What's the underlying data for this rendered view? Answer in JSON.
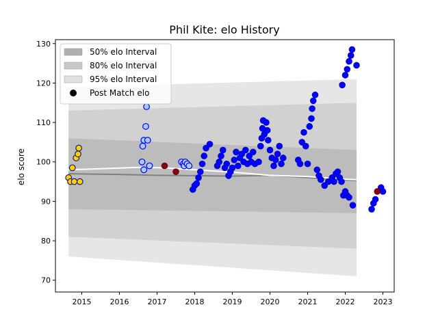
{
  "chart_data": {
    "type": "scatter",
    "title": "Phil Kite: elo History",
    "xlabel": "",
    "ylabel": "elo score",
    "xlim": [
      2014.3,
      2023.3
    ],
    "ylim": [
      67,
      131
    ],
    "x_ticks": [
      2015,
      2016,
      2017,
      2018,
      2019,
      2020,
      2021,
      2022,
      2023
    ],
    "y_ticks": [
      70,
      80,
      90,
      100,
      110,
      120,
      130
    ],
    "legend": {
      "position": "top-left",
      "entries": [
        {
          "label": "50% elo Interval",
          "color": "#b0b0b0"
        },
        {
          "label": "80% elo Interval",
          "color": "#c8c8c8"
        },
        {
          "label": "95% elo Interval",
          "color": "#e0e0e0"
        },
        {
          "label": "Post Match elo",
          "color": "#000000"
        }
      ]
    },
    "bands": {
      "x_range": [
        2014.65,
        2022.3
      ],
      "p95": {
        "upper_start": 119,
        "upper_end": 121,
        "lower_start": 76,
        "lower_end": 71
      },
      "p80": {
        "upper_start": 113,
        "upper_end": 115,
        "lower_start": 81,
        "lower_end": 78
      },
      "p50": {
        "upper_start": 106,
        "upper_end": 103,
        "lower_start": 88,
        "lower_end": 87
      }
    },
    "mean_lines": {
      "white": [
        [
          2014.65,
          98.0
        ],
        [
          2016.5,
          98.6
        ],
        [
          2017.2,
          98.5
        ],
        [
          2018.0,
          98.0
        ],
        [
          2019.0,
          97.4
        ],
        [
          2020.0,
          96.6
        ],
        [
          2021.0,
          96.3
        ],
        [
          2022.0,
          95.6
        ],
        [
          2022.3,
          95.5
        ]
      ],
      "gray": [
        [
          2014.65,
          97.0
        ],
        [
          2016.0,
          96.8
        ],
        [
          2017.0,
          96.6
        ],
        [
          2018.0,
          96.5
        ],
        [
          2019.0,
          96.4
        ],
        [
          2020.0,
          96.6
        ],
        [
          2021.0,
          96.0
        ],
        [
          2022.0,
          95.4
        ],
        [
          2022.3,
          95.3
        ]
      ]
    },
    "series": [
      {
        "style": "filled-blue",
        "points": [
          [
            2017.95,
            93
          ],
          [
            2018.0,
            94
          ],
          [
            2018.05,
            94.5
          ],
          [
            2018.1,
            96
          ],
          [
            2018.15,
            97.5
          ],
          [
            2018.2,
            99.5
          ],
          [
            2018.25,
            101.5
          ],
          [
            2018.3,
            103.5
          ],
          [
            2018.4,
            104.5
          ],
          [
            2018.6,
            99
          ],
          [
            2018.65,
            100
          ],
          [
            2018.7,
            101.5
          ],
          [
            2018.75,
            103
          ],
          [
            2018.8,
            98.5
          ],
          [
            2018.85,
            99.5
          ],
          [
            2018.9,
            96.5
          ],
          [
            2018.95,
            97.5
          ],
          [
            2019.0,
            98.5
          ],
          [
            2019.05,
            100.5
          ],
          [
            2019.1,
            102.5
          ],
          [
            2019.15,
            99
          ],
          [
            2019.2,
            101
          ],
          [
            2019.25,
            102
          ],
          [
            2019.3,
            100
          ],
          [
            2019.35,
            103
          ],
          [
            2019.4,
            99.5
          ],
          [
            2019.45,
            101.5
          ],
          [
            2019.5,
            100
          ],
          [
            2019.55,
            102.5
          ],
          [
            2019.6,
            99.5
          ],
          [
            2019.7,
            100
          ],
          [
            2019.75,
            104
          ],
          [
            2019.78,
            106
          ],
          [
            2019.8,
            108.5
          ],
          [
            2019.82,
            110.5
          ],
          [
            2019.85,
            107
          ],
          [
            2019.9,
            110
          ],
          [
            2019.93,
            108
          ],
          [
            2019.95,
            105.5
          ],
          [
            2020.0,
            103
          ],
          [
            2020.05,
            101
          ],
          [
            2020.1,
            99
          ],
          [
            2020.15,
            100.5
          ],
          [
            2020.2,
            102
          ],
          [
            2020.25,
            104
          ],
          [
            2020.3,
            99.5
          ],
          [
            2020.35,
            101
          ],
          [
            2020.75,
            100.5
          ],
          [
            2020.8,
            99.5
          ],
          [
            2020.85,
            105
          ],
          [
            2020.9,
            107.5
          ],
          [
            2020.95,
            104
          ],
          [
            2021.0,
            99.5
          ],
          [
            2021.05,
            109
          ],
          [
            2021.1,
            111
          ],
          [
            2021.12,
            113.5
          ],
          [
            2021.15,
            115.5
          ],
          [
            2021.2,
            117
          ],
          [
            2021.25,
            98
          ],
          [
            2021.3,
            96.5
          ],
          [
            2021.35,
            95.5
          ],
          [
            2021.45,
            94
          ],
          [
            2021.55,
            95
          ],
          [
            2021.65,
            96
          ],
          [
            2021.7,
            95
          ],
          [
            2021.75,
            97
          ],
          [
            2021.8,
            97.5
          ],
          [
            2021.85,
            96
          ],
          [
            2021.9,
            95
          ],
          [
            2021.92,
            119.5
          ],
          [
            2022.0,
            122
          ],
          [
            2022.05,
            123.5
          ],
          [
            2022.1,
            125.5
          ],
          [
            2022.15,
            127
          ],
          [
            2022.18,
            128.5
          ],
          [
            2022.3,
            124.5
          ],
          [
            2021.95,
            91.5
          ],
          [
            2022.0,
            92.5
          ],
          [
            2022.05,
            91.5
          ],
          [
            2022.1,
            91
          ],
          [
            2022.2,
            89
          ],
          [
            2022.7,
            88
          ],
          [
            2022.75,
            89.5
          ],
          [
            2022.8,
            90.5
          ],
          [
            2022.95,
            93.5
          ],
          [
            2023.0,
            92.5
          ]
        ]
      },
      {
        "style": "hollow-blue",
        "points": [
          [
            2016.6,
            100
          ],
          [
            2016.62,
            104
          ],
          [
            2016.65,
            105.5
          ],
          [
            2016.7,
            109
          ],
          [
            2016.72,
            114
          ],
          [
            2016.75,
            105.5
          ],
          [
            2016.8,
            99
          ],
          [
            2016.65,
            98
          ],
          [
            2017.65,
            100
          ],
          [
            2017.7,
            99.5
          ],
          [
            2017.72,
            99
          ],
          [
            2017.75,
            100
          ],
          [
            2017.8,
            99.5
          ],
          [
            2017.85,
            99
          ]
        ]
      },
      {
        "style": "yellow-navy",
        "points": [
          [
            2014.65,
            96
          ],
          [
            2014.7,
            95
          ],
          [
            2014.75,
            98.5
          ],
          [
            2014.8,
            95
          ],
          [
            2014.85,
            101
          ],
          [
            2014.9,
            102
          ],
          [
            2014.92,
            103.5
          ],
          [
            2014.95,
            95
          ]
        ]
      },
      {
        "style": "dark-red",
        "points": [
          [
            2017.2,
            99
          ],
          [
            2017.5,
            97.5
          ],
          [
            2022.85,
            92.5
          ]
        ]
      }
    ]
  }
}
